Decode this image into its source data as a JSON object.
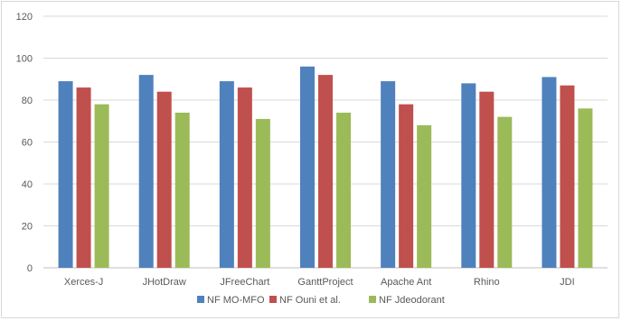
{
  "chart_data": {
    "type": "bar",
    "title": "",
    "xlabel": "",
    "ylabel": "",
    "categories": [
      "Xerces-J",
      "JHotDraw",
      "JFreeChart",
      "GanttProject",
      "Apache Ant",
      "Rhino",
      "JDI"
    ],
    "series": [
      {
        "name": "NF MO-MFO",
        "color": "#4f81bd",
        "values": [
          89,
          92,
          89,
          96,
          89,
          88,
          91
        ]
      },
      {
        "name": "NF Ouni et al.",
        "color": "#c0504d",
        "values": [
          86,
          84,
          86,
          92,
          78,
          84,
          87
        ]
      },
      {
        "name": "NF Jdeodorant",
        "color": "#9bbb59",
        "values": [
          78,
          74,
          71,
          74,
          68,
          72,
          76
        ]
      }
    ],
    "ylim": [
      0,
      120
    ],
    "yticks": [
      "0",
      "20",
      "40",
      "60",
      "80",
      "100",
      "120"
    ],
    "grid": true,
    "legend_position": "bottom"
  }
}
